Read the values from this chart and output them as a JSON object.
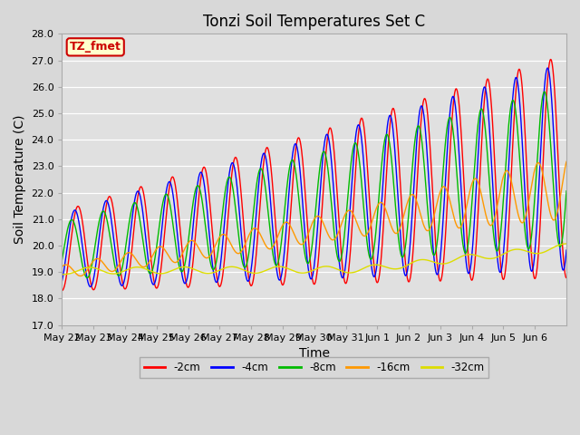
{
  "title": "Tonzi Soil Temperatures Set C",
  "ylabel": "Soil Temperature (C)",
  "xlabel": "Time",
  "ylim": [
    17.0,
    28.0
  ],
  "yticks": [
    17.0,
    18.0,
    19.0,
    20.0,
    21.0,
    22.0,
    23.0,
    24.0,
    25.0,
    26.0,
    27.0,
    28.0
  ],
  "xtick_labels": [
    "May 22",
    "May 23",
    "May 24",
    "May 25",
    "May 26",
    "May 27",
    "May 28",
    "May 29",
    "May 30",
    "May 31",
    "Jun 1",
    "Jun 2",
    "Jun 3",
    "Jun 4",
    "Jun 5",
    "Jun 6"
  ],
  "legend_label": "TZ_fmet",
  "series_labels": [
    "-2cm",
    "-4cm",
    "-8cm",
    "-16cm",
    "-32cm"
  ],
  "series_colors": [
    "#ff0000",
    "#0000ff",
    "#00bb00",
    "#ff9900",
    "#dddd00"
  ],
  "background_color": "#d8d8d8",
  "plot_bg_color": "#e0e0e0",
  "grid_color": "#ffffff",
  "title_fontsize": 12,
  "axis_fontsize": 10,
  "tick_fontsize": 8,
  "legend_box_bg": "#ffffcc",
  "legend_box_edge": "#cc0000"
}
